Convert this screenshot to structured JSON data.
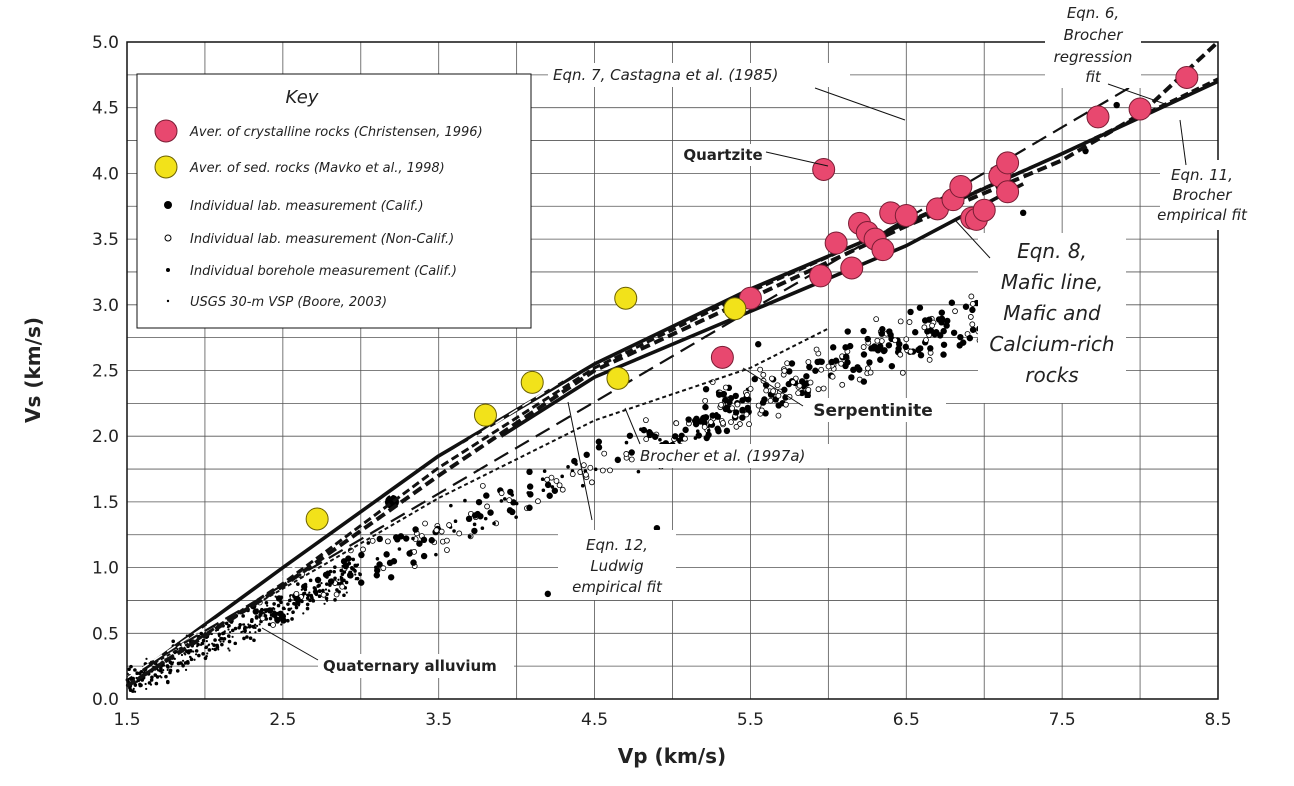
{
  "chart_data": {
    "type": "scatter",
    "xlabel": "Vp (km/s)",
    "ylabel": "Vs (km/s)",
    "xlim": [
      1.5,
      8.5
    ],
    "ylim": [
      0.0,
      5.0
    ],
    "x_ticks": [
      "1.5",
      "2.5",
      "3.5",
      "4.5",
      "5.5",
      "6.5",
      "7.5",
      "8.5"
    ],
    "y_ticks": [
      "0.0",
      "0.5",
      "1.0",
      "1.5",
      "2.0",
      "2.5",
      "3.0",
      "3.5",
      "4.0",
      "4.5",
      "5.0"
    ],
    "grid": true,
    "legend": {
      "title": "Key",
      "placement": "top-left",
      "entries": [
        {
          "label": "Aver. of crystalline rocks (Christensen, 1996)",
          "marker": "large-circle",
          "color": "#e8486f"
        },
        {
          "label": "Aver. of sed. rocks (Mavko et al., 1998)",
          "marker": "large-circle",
          "color": "#f2e21a"
        },
        {
          "label": "Individual lab. measurement (Calif.)",
          "marker": "filled-dot",
          "color": "#000000"
        },
        {
          "label": "Individual lab. measurement (Non-Calif.)",
          "marker": "open-dot",
          "color": "#000000"
        },
        {
          "label": "Individual borehole measurement (Calif.)",
          "marker": "small-dot",
          "color": "#000000"
        },
        {
          "label": "USGS 30-m VSP (Boore, 2003)",
          "marker": "tiny-dot",
          "color": "#000000"
        }
      ]
    },
    "series": [
      {
        "name": "Aver. of crystalline rocks (Christensen, 1996)",
        "points": [
          [
            5.97,
            4.03
          ],
          [
            5.32,
            2.6
          ],
          [
            5.5,
            3.05
          ],
          [
            5.95,
            3.22
          ],
          [
            6.05,
            3.47
          ],
          [
            6.15,
            3.28
          ],
          [
            6.2,
            3.62
          ],
          [
            6.25,
            3.55
          ],
          [
            6.3,
            3.5
          ],
          [
            6.35,
            3.42
          ],
          [
            6.4,
            3.7
          ],
          [
            6.5,
            3.68
          ],
          [
            6.7,
            3.73
          ],
          [
            6.8,
            3.8
          ],
          [
            6.85,
            3.9
          ],
          [
            6.92,
            3.66
          ],
          [
            6.95,
            3.65
          ],
          [
            7.0,
            3.72
          ],
          [
            7.1,
            3.98
          ],
          [
            7.15,
            3.86
          ],
          [
            7.15,
            4.08
          ],
          [
            7.73,
            4.43
          ],
          [
            8.0,
            4.49
          ],
          [
            8.3,
            4.73
          ]
        ]
      },
      {
        "name": "Aver. of sed. rocks (Mavko et al., 1998)",
        "points": [
          [
            2.72,
            1.37
          ],
          [
            3.8,
            2.16
          ],
          [
            4.1,
            2.41
          ],
          [
            4.65,
            2.44
          ],
          [
            4.7,
            3.05
          ],
          [
            5.4,
            2.97
          ]
        ]
      }
    ],
    "curves": [
      {
        "name": "Eqn. 7, Castagna et al. (1985)",
        "style": "long-dash",
        "points": [
          [
            1.6,
            0.24
          ],
          [
            8.0,
            4.7
          ]
        ]
      },
      {
        "name": "Eqn. 6, Brocher regression fit",
        "style": "dashed-bold",
        "points": [
          [
            1.5,
            0.1
          ],
          [
            2.5,
            0.86
          ],
          [
            3.5,
            1.7
          ],
          [
            4.5,
            2.5
          ],
          [
            5.5,
            3.05
          ],
          [
            6.5,
            3.6
          ],
          [
            7.5,
            4.1
          ],
          [
            8.0,
            4.45
          ],
          [
            8.5,
            5.0
          ]
        ]
      },
      {
        "name": "Eqn. 11, Brocher empirical fit",
        "style": "dashed",
        "points": [
          [
            1.5,
            0.1
          ],
          [
            2.5,
            0.88
          ],
          [
            3.5,
            1.76
          ],
          [
            4.5,
            2.52
          ],
          [
            5.5,
            3.1
          ],
          [
            6.5,
            3.63
          ],
          [
            7.5,
            4.15
          ],
          [
            8.5,
            4.72
          ]
        ]
      },
      {
        "name": "Eqn. 12, Ludwig empirical fit",
        "style": "solid-bold",
        "points": [
          [
            1.6,
            0.22
          ],
          [
            2.5,
            1.0
          ],
          [
            3.5,
            1.85
          ],
          [
            4.5,
            2.55
          ],
          [
            5.5,
            3.12
          ],
          [
            6.5,
            3.62
          ],
          [
            7.5,
            4.15
          ],
          [
            8.5,
            4.7
          ]
        ]
      },
      {
        "name": "Eqn. 8, Mafic line, Mafic and Calcium-rich rocks",
        "style": "solid-bold",
        "points": [
          [
            3.9,
            2.0
          ],
          [
            4.5,
            2.45
          ],
          [
            5.5,
            2.95
          ],
          [
            6.5,
            3.45
          ],
          [
            7.25,
            3.92
          ]
        ]
      },
      {
        "name": "Brocher et al. (1997a)",
        "style": "dotted",
        "points": [
          [
            1.6,
            0.22
          ],
          [
            2.5,
            0.84
          ],
          [
            3.5,
            1.53
          ],
          [
            4.5,
            2.12
          ],
          [
            5.5,
            2.52
          ],
          [
            6.0,
            2.82
          ]
        ]
      }
    ],
    "annotations": [
      "Eqn. 6,",
      "Brocher",
      "regression",
      "fit",
      "Eqn. 7, Castagna et al. (1985)",
      "Quartzite",
      "Eqn. 11,",
      "Brocher",
      "empirical fit",
      "Eqn. 8,",
      "Mafic line,",
      "Mafic and",
      "Calcium-rich",
      "rocks",
      "Serpentinite",
      "Brocher et al. (1997a)",
      "Eqn. 12,",
      "Ludwig",
      "empirical fit",
      "Quaternary alluvium"
    ]
  },
  "colors": {
    "crystalline": "#e8486f",
    "crystalline_stroke": "#7a1c34",
    "sedimentary": "#f2e21a",
    "sedimentary_stroke": "#6b6000",
    "ink": "#111111",
    "grid": "#555555"
  }
}
